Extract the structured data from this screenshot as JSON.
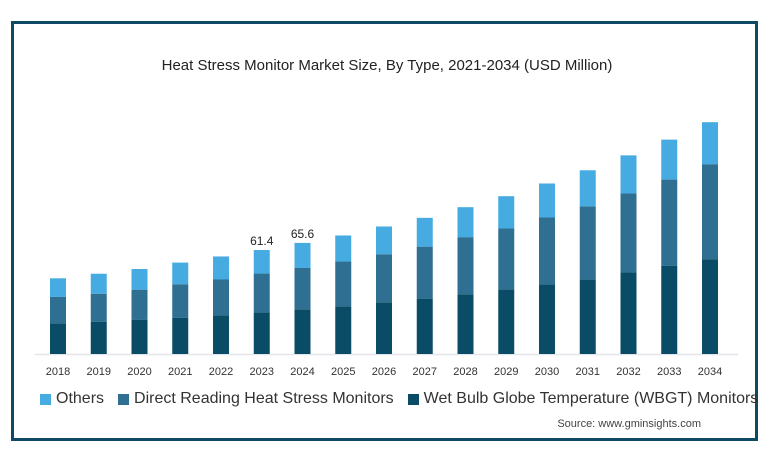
{
  "chart_data": {
    "type": "bar",
    "stacked": true,
    "title": "Heat Stress Monitor Market Size, By Type, 2021-2034 (USD Million)",
    "xlabel": "",
    "ylabel": "",
    "ylim": [
      0,
      150
    ],
    "grid": false,
    "legend_position": "bottom",
    "categories": [
      "2018",
      "2019",
      "2020",
      "2021",
      "2022",
      "2023",
      "2024",
      "2025",
      "2026",
      "2027",
      "2028",
      "2029",
      "2030",
      "2031",
      "2032",
      "2033",
      "2034"
    ],
    "series": [
      {
        "name": "Wet Bulb Globe Temperature (WBGT) Monitors",
        "color": "#0a4c66",
        "values": [
          18.1,
          19.1,
          20.1,
          21.3,
          22.9,
          24.6,
          26.4,
          28.2,
          30.5,
          32.5,
          35.3,
          38.2,
          41.0,
          44.1,
          48.1,
          52.0,
          56.0
        ]
      },
      {
        "name": "Direct Reading Heat Stress Monitors",
        "color": "#2e6f92",
        "values": [
          15.6,
          16.5,
          17.9,
          19.9,
          21.1,
          22.9,
          24.4,
          26.4,
          28.4,
          30.9,
          33.7,
          35.9,
          39.6,
          43.1,
          46.7,
          51.0,
          56.1
        ]
      },
      {
        "name": "Others",
        "color": "#45abe0",
        "values": [
          11.0,
          11.8,
          12.2,
          12.8,
          13.6,
          13.9,
          14.8,
          15.4,
          16.4,
          17.0,
          17.7,
          19.1,
          20.1,
          21.3,
          22.5,
          23.6,
          24.8
        ]
      }
    ],
    "data_labels": [
      {
        "category": "2023",
        "text": "61.4"
      },
      {
        "category": "2024",
        "text": "65.6"
      }
    ],
    "legend_order": [
      "Others",
      "Direct Reading Heat Stress Monitors",
      "Wet Bulb Globe Temperature (WBGT) Monitors"
    ],
    "source": "Source: www.gminsights.com"
  }
}
